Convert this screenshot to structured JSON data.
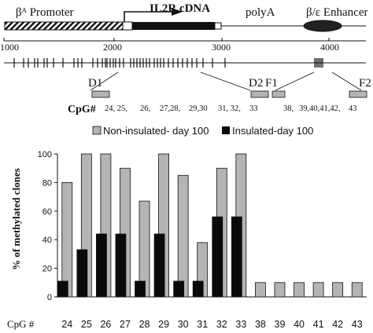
{
  "diagram": {
    "labels": {
      "promoter": "βᴬ Promoter",
      "cdna": "IL2R cDNA",
      "polya": "polyA",
      "enhancer": "β/ε Enhancer"
    },
    "scale": [
      "1000",
      "2000",
      "3000",
      "4000"
    ],
    "regions": [
      "D1",
      "D2",
      "F1",
      "F2"
    ],
    "cpg_label": "CpG#",
    "cpg_groups": [
      "24, 25,",
      "26,",
      "27,28,",
      "29,30",
      "31, 32,",
      "33",
      "38,",
      "39,40,41,42,",
      "43"
    ]
  },
  "chart_data": {
    "type": "bar",
    "title": "",
    "legend": [
      "Non-insulated- day 100",
      "Insulated-day 100"
    ],
    "legend_position": "top",
    "ylabel": "% of methylated clones",
    "xlabel": "CpG #",
    "ylim": [
      0,
      100
    ],
    "yticks": [
      0,
      20,
      40,
      60,
      80,
      100
    ],
    "categories": [
      "24",
      "25",
      "26",
      "27",
      "28",
      "29",
      "30",
      "31",
      "32",
      "33",
      "38",
      "39",
      "40",
      "41",
      "42",
      "43"
    ],
    "series": [
      {
        "name": "Non-insulated- day 100",
        "color": "#b4b4b4",
        "values": [
          80,
          100,
          100,
          90,
          67,
          100,
          85,
          38,
          90,
          100,
          10,
          10,
          10,
          10,
          10,
          10
        ]
      },
      {
        "name": "Insulated-day 100",
        "color": "#0a0a0a",
        "values": [
          11,
          33,
          44,
          44,
          11,
          44,
          11,
          11,
          56,
          56,
          null,
          null,
          null,
          null,
          null,
          null
        ]
      }
    ],
    "grid": false
  }
}
